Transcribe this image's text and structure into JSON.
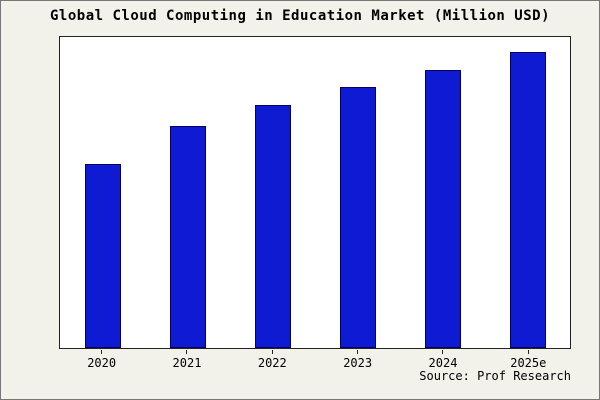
{
  "title": "Global Cloud Computing in Education Market (Million USD)",
  "source": "Source: Prof Research",
  "colors": {
    "background": "#f2f1ea",
    "plot_background": "#ffffff",
    "bar_fill": "#0f1bd2",
    "bar_border": "#000066"
  },
  "chart_data": {
    "type": "bar",
    "title": "Global Cloud Computing in Education Market (Million USD)",
    "categories": [
      "2020",
      "2021",
      "2022",
      "2023",
      "2024",
      "2025e"
    ],
    "values": [
      62,
      75,
      82,
      88,
      94,
      100
    ],
    "xlabel": "",
    "ylabel": "",
    "ylim": [
      0,
      105
    ],
    "y_axis_labels_visible": false,
    "value_scale": "relative estimate (no y-axis tick labels shown in figure)",
    "grid": false,
    "legend": false,
    "source": "Source: Prof Research"
  }
}
